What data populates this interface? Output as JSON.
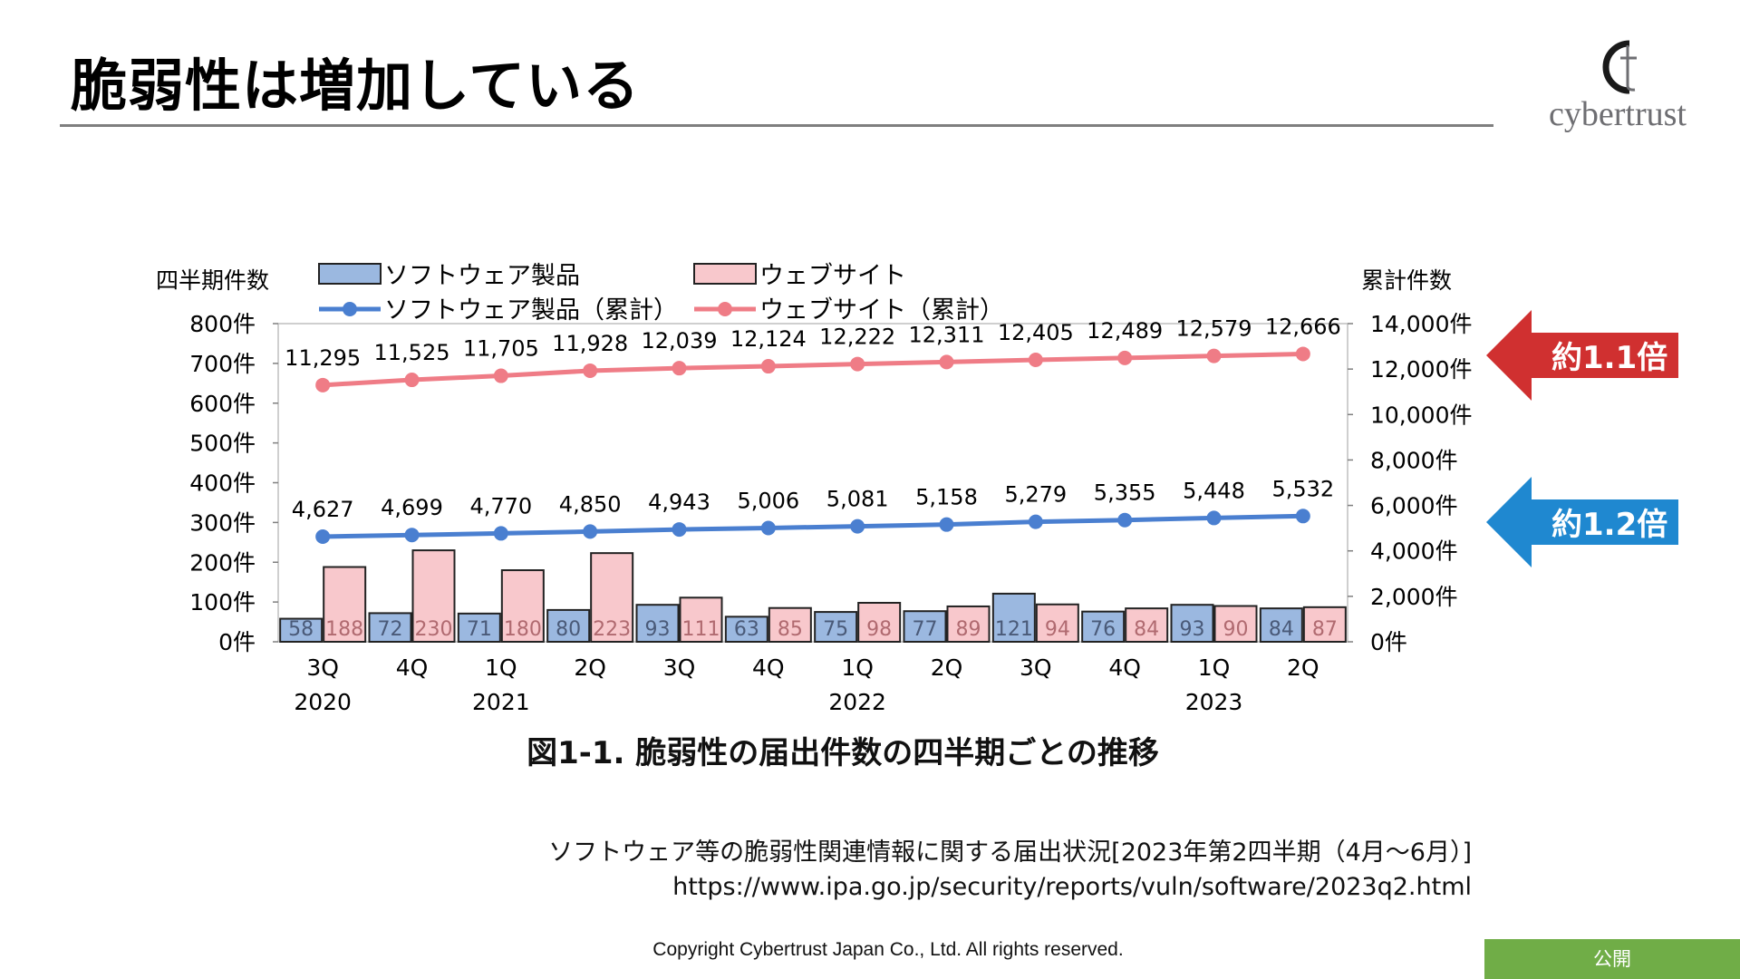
{
  "slide": {
    "title": "脆弱性は増加している",
    "logo_text": "cybertrust",
    "source_line1": "ソフトウェア等の脆弱性関連情報に関する届出状況[2023年第2四半期（4月～6月）]",
    "source_line2": "https://www.ipa.go.jp/security/reports/vuln/software/2023q2.html",
    "copyright": "Copyright Cybertrust Japan Co., Ltd. All rights reserved.",
    "badge": "公開",
    "callouts": [
      {
        "text": "約1.1倍",
        "color": "#d03030"
      },
      {
        "text": "約1.2倍",
        "color": "#1f88d0"
      }
    ]
  },
  "chart_data": {
    "type": "bar+line",
    "title": "図1-1. 脆弱性の届出件数の四半期ごとの推移",
    "left_axis_title": "四半期件数",
    "right_axis_title": "累計件数",
    "categories": [
      "3Q",
      "4Q",
      "1Q",
      "2Q",
      "3Q",
      "4Q",
      "1Q",
      "2Q",
      "3Q",
      "4Q",
      "1Q",
      "2Q"
    ],
    "year_labels": [
      {
        "index": 0,
        "label": "2020"
      },
      {
        "index": 2,
        "label": "2021"
      },
      {
        "index": 6,
        "label": "2022"
      },
      {
        "index": 10,
        "label": "2023"
      }
    ],
    "left_axis": {
      "min": 0,
      "max": 800,
      "step": 100,
      "ticks": [
        "0件",
        "100件",
        "200件",
        "300件",
        "400件",
        "500件",
        "600件",
        "700件",
        "800件"
      ]
    },
    "right_axis": {
      "min": 0,
      "max": 14000,
      "step": 2000,
      "ticks": [
        "0件",
        "2,000件",
        "4,000件",
        "6,000件",
        "8,000件",
        "10,000件",
        "12,000件",
        "14,000件"
      ]
    },
    "bar_series": [
      {
        "name": "ソフトウェア製品",
        "color": "#9bb8e0",
        "values": [
          58,
          72,
          71,
          80,
          93,
          63,
          75,
          77,
          121,
          76,
          93,
          84
        ]
      },
      {
        "name": "ウェブサイト",
        "color": "#f8c8cc",
        "values": [
          188,
          230,
          180,
          223,
          111,
          85,
          98,
          89,
          94,
          84,
          90,
          87
        ]
      }
    ],
    "line_series": [
      {
        "name": "ソフトウェア製品（累計）",
        "color": "#4a7fd0",
        "axis": "right",
        "values": [
          4627,
          4699,
          4770,
          4850,
          4943,
          5006,
          5081,
          5158,
          5279,
          5355,
          5448,
          5532
        ],
        "labels": [
          "4,627",
          "4,699",
          "4,770",
          "4,850",
          "4,943",
          "5,006",
          "5,081",
          "5,158",
          "5,279",
          "5,355",
          "5,448",
          "5,532"
        ]
      },
      {
        "name": "ウェブサイト（累計）",
        "color": "#ef7c86",
        "axis": "right",
        "values": [
          11295,
          11525,
          11705,
          11928,
          12039,
          12124,
          12222,
          12311,
          12405,
          12489,
          12579,
          12666
        ],
        "labels": [
          "11,295",
          "11,525",
          "11,705",
          "11,928",
          "12,039",
          "12,124",
          "12,222",
          "12,311",
          "12,405",
          "12,489",
          "12,579",
          "12,666"
        ]
      }
    ]
  }
}
